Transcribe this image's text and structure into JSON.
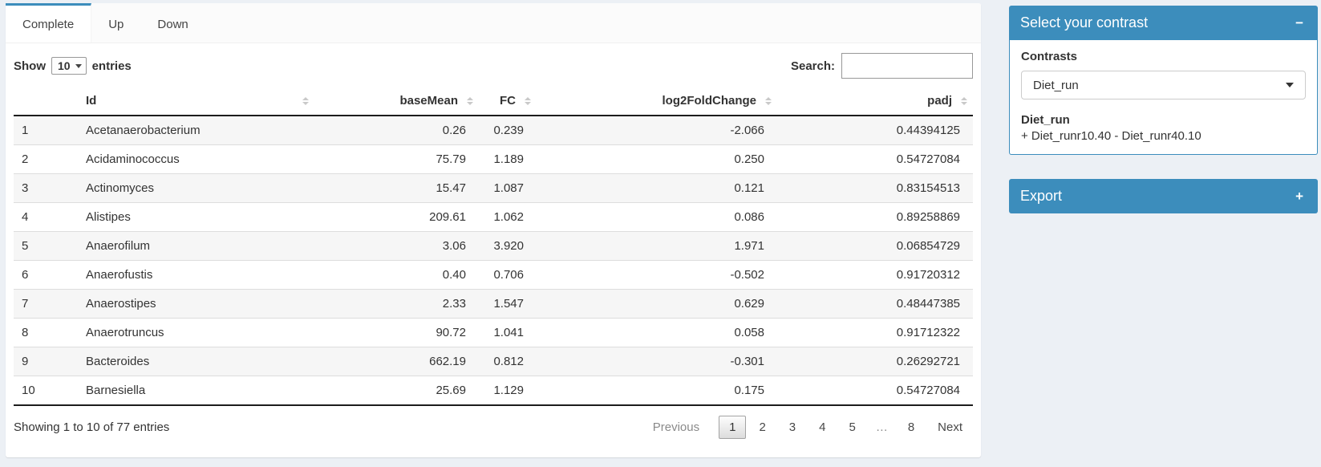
{
  "panel": {
    "tabs": [
      {
        "label": "Complete",
        "active": true
      },
      {
        "label": "Up",
        "active": false
      },
      {
        "label": "Down",
        "active": false
      }
    ],
    "length_control": {
      "show_label": "Show",
      "page_size": "10",
      "entries_label": "entries"
    },
    "search": {
      "label": "Search:",
      "value": ""
    },
    "table": {
      "columns": [
        {
          "label": ""
        },
        {
          "label": "Id"
        },
        {
          "label": "baseMean"
        },
        {
          "label": "FC"
        },
        {
          "label": "log2FoldChange"
        },
        {
          "label": "padj"
        }
      ],
      "rows": [
        [
          "1",
          "Acetanaerobacterium",
          "0.26",
          "0.239",
          "-2.066",
          "0.44394125"
        ],
        [
          "2",
          "Acidaminococcus",
          "75.79",
          "1.189",
          "0.250",
          "0.54727084"
        ],
        [
          "3",
          "Actinomyces",
          "15.47",
          "1.087",
          "0.121",
          "0.83154513"
        ],
        [
          "4",
          "Alistipes",
          "209.61",
          "1.062",
          "0.086",
          "0.89258869"
        ],
        [
          "5",
          "Anaerofilum",
          "3.06",
          "3.920",
          "1.971",
          "0.06854729"
        ],
        [
          "6",
          "Anaerofustis",
          "0.40",
          "0.706",
          "-0.502",
          "0.91720312"
        ],
        [
          "7",
          "Anaerostipes",
          "2.33",
          "1.547",
          "0.629",
          "0.48447385"
        ],
        [
          "8",
          "Anaerotruncus",
          "90.72",
          "1.041",
          "0.058",
          "0.91712322"
        ],
        [
          "9",
          "Bacteroides",
          "662.19",
          "0.812",
          "-0.301",
          "0.26292721"
        ],
        [
          "10",
          "Barnesiella",
          "25.69",
          "1.129",
          "0.175",
          "0.54727084"
        ]
      ]
    },
    "footer": {
      "info": "Showing 1 to 10 of 77 entries",
      "pagination": [
        {
          "label": "Previous",
          "state": "disabled"
        },
        {
          "label": "1",
          "state": "current"
        },
        {
          "label": "2",
          "state": "normal"
        },
        {
          "label": "3",
          "state": "normal"
        },
        {
          "label": "4",
          "state": "normal"
        },
        {
          "label": "5",
          "state": "normal"
        },
        {
          "label": "…",
          "state": "ellipsis"
        },
        {
          "label": "8",
          "state": "normal"
        },
        {
          "label": "Next",
          "state": "normal"
        }
      ]
    }
  },
  "sidebar": {
    "contrast_box": {
      "title": "Select your contrast",
      "collapse_icon": "−",
      "contrasts_label": "Contrasts",
      "selected_contrast": "Diet_run",
      "contrast_name": "Diet_run",
      "contrast_formula": "+ Diet_runr10.40 - Diet_runr40.10"
    },
    "export_box": {
      "title": "Export",
      "expand_icon": "+"
    }
  },
  "colors": {
    "accent_blue": "#3c8dbc",
    "page_background": "#ecf0f5",
    "row_stripe": "#f6f6f6",
    "table_dark_border": "#1c1c1c"
  }
}
